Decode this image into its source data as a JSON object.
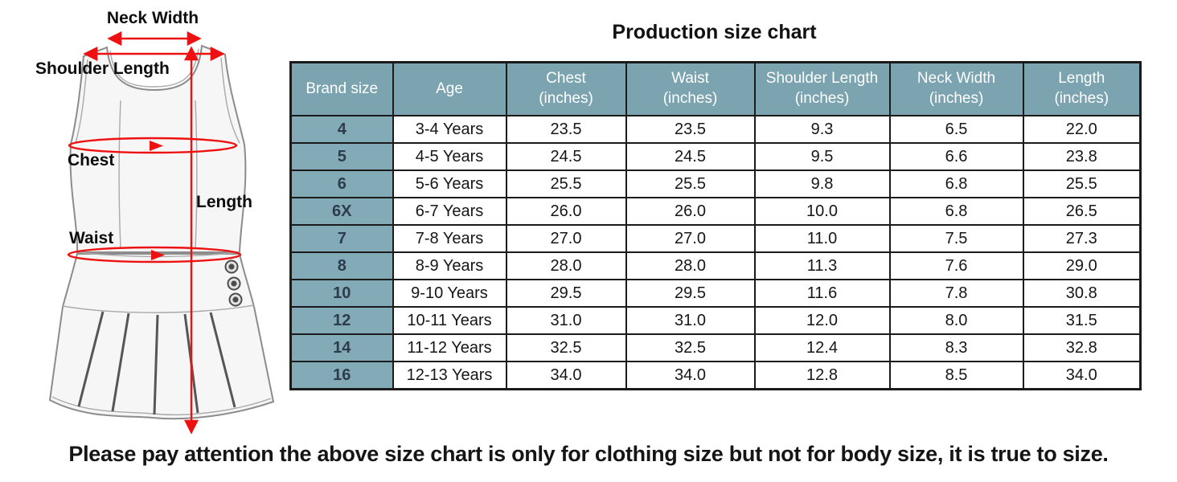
{
  "title": "Production size chart",
  "note": "Please pay attention the above size chart is only for clothing size but not for body size, it is true to size.",
  "colors": {
    "header_bg": "#7ba4b0",
    "brand_bg": "#83abb7",
    "header_text": "#ffffff",
    "brand_text": "#2e3b4c",
    "table_border": "#1b1b1b",
    "arrow_red": "#ee1111",
    "sketch_line": "#8c8c8c"
  },
  "diagram": {
    "labels": {
      "neck_width": "Neck Width",
      "shoulder_length": "Shoulder Length",
      "chest": "Chest",
      "length": "Length",
      "waist": "Waist"
    }
  },
  "chart_data": {
    "type": "table",
    "title": "Production size chart",
    "columns": [
      {
        "line1": "Brand size",
        "line2": ""
      },
      {
        "line1": "Age",
        "line2": ""
      },
      {
        "line1": "Chest",
        "line2": "(inches)"
      },
      {
        "line1": "Waist",
        "line2": "(inches)"
      },
      {
        "line1": "Shoulder Length",
        "line2": "(inches)"
      },
      {
        "line1": "Neck Width",
        "line2": "(inches)"
      },
      {
        "line1": "Length",
        "line2": "(inches)"
      }
    ],
    "rows": [
      [
        "4",
        "3-4 Years",
        "23.5",
        "23.5",
        "9.3",
        "6.5",
        "22.0"
      ],
      [
        "5",
        "4-5 Years",
        "24.5",
        "24.5",
        "9.5",
        "6.6",
        "23.8"
      ],
      [
        "6",
        "5-6 Years",
        "25.5",
        "25.5",
        "9.8",
        "6.8",
        "25.5"
      ],
      [
        "6X",
        "6-7 Years",
        "26.0",
        "26.0",
        "10.0",
        "6.8",
        "26.5"
      ],
      [
        "7",
        "7-8 Years",
        "27.0",
        "27.0",
        "11.0",
        "7.5",
        "27.3"
      ],
      [
        "8",
        "8-9 Years",
        "28.0",
        "28.0",
        "11.3",
        "7.6",
        "29.0"
      ],
      [
        "10",
        "9-10 Years",
        "29.5",
        "29.5",
        "11.6",
        "7.8",
        "30.8"
      ],
      [
        "12",
        "10-11 Years",
        "31.0",
        "31.0",
        "12.0",
        "8.0",
        "31.5"
      ],
      [
        "14",
        "11-12 Years",
        "32.5",
        "32.5",
        "12.4",
        "8.3",
        "32.8"
      ],
      [
        "16",
        "12-13 Years",
        "34.0",
        "34.0",
        "12.8",
        "8.5",
        "34.0"
      ]
    ]
  }
}
